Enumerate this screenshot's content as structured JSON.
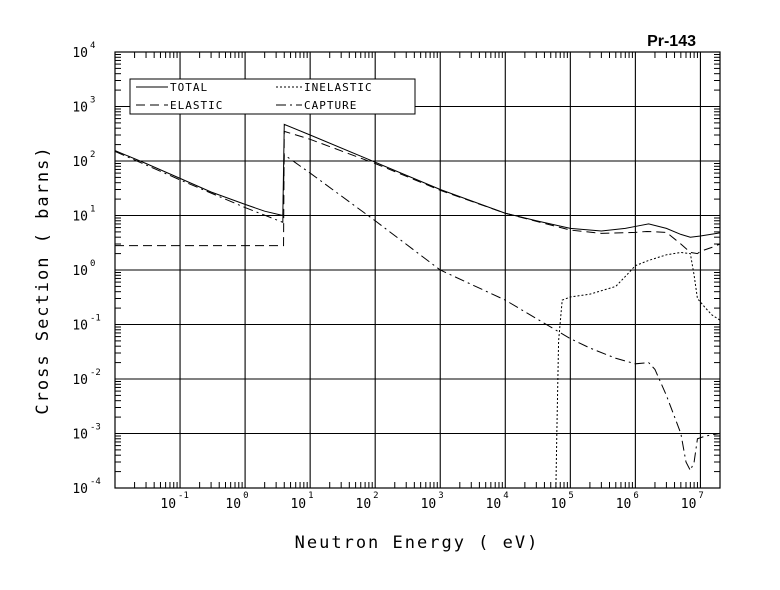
{
  "chart_data": {
    "type": "line",
    "title": "Pr-143",
    "xlabel": "Neutron Energy ( eV)",
    "ylabel": "Cross Section ( barns)",
    "x_scale": "log",
    "y_scale": "log",
    "xlim": [
      0.01,
      20000000
    ],
    "ylim": [
      0.0001,
      10000
    ],
    "grid": true,
    "legend_position": "top-left",
    "x_ticks": [
      {
        "base": "10",
        "exp": "-1",
        "value": 0.1
      },
      {
        "base": "10",
        "exp": "0",
        "value": 1
      },
      {
        "base": "10",
        "exp": "1",
        "value": 10
      },
      {
        "base": "10",
        "exp": "2",
        "value": 100
      },
      {
        "base": "10",
        "exp": "3",
        "value": 1000
      },
      {
        "base": "10",
        "exp": "4",
        "value": 10000
      },
      {
        "base": "10",
        "exp": "5",
        "value": 100000
      },
      {
        "base": "10",
        "exp": "6",
        "value": 1000000
      },
      {
        "base": "10",
        "exp": "7",
        "value": 10000000
      }
    ],
    "y_ticks": [
      {
        "base": "10",
        "exp": "-4",
        "value": 0.0001
      },
      {
        "base": "10",
        "exp": "-3",
        "value": 0.001
      },
      {
        "base": "10",
        "exp": "-2",
        "value": 0.01
      },
      {
        "base": "10",
        "exp": "-1",
        "value": 0.1
      },
      {
        "base": "10",
        "exp": "0",
        "value": 1
      },
      {
        "base": "10",
        "exp": "1",
        "value": 10
      },
      {
        "base": "10",
        "exp": "2",
        "value": 100
      },
      {
        "base": "10",
        "exp": "3",
        "value": 1000
      },
      {
        "base": "10",
        "exp": "4",
        "value": 10000
      }
    ],
    "series": [
      {
        "name": "TOTAL",
        "style": "solid",
        "points": [
          [
            0.01,
            155
          ],
          [
            0.03,
            90
          ],
          [
            0.1,
            48
          ],
          [
            0.3,
            27
          ],
          [
            1,
            16
          ],
          [
            2,
            12
          ],
          [
            3.8,
            10
          ],
          [
            4,
            470
          ],
          [
            10,
            300
          ],
          [
            100,
            95
          ],
          [
            1000,
            30
          ],
          [
            10000,
            11
          ],
          [
            30000,
            8
          ],
          [
            100000,
            5.8
          ],
          [
            300000,
            5.2
          ],
          [
            700000,
            5.8
          ],
          [
            1000000,
            6.3
          ],
          [
            1600000,
            7.0
          ],
          [
            3000000,
            5.8
          ],
          [
            5000000,
            4.5
          ],
          [
            7000000,
            4.0
          ],
          [
            10000000,
            4.2
          ],
          [
            20000000,
            4.8
          ]
        ]
      },
      {
        "name": "ELASTIC",
        "style": "dashed",
        "points": [
          [
            0.01,
            2.8
          ],
          [
            3.8,
            2.8
          ],
          [
            3.9,
            2.8
          ],
          [
            4,
            350
          ],
          [
            10,
            250
          ],
          [
            100,
            90
          ],
          [
            1000,
            29
          ],
          [
            10000,
            11
          ],
          [
            100000,
            5.4
          ],
          [
            300000,
            4.7
          ],
          [
            1000000,
            4.9
          ],
          [
            1500000,
            5.1
          ],
          [
            3000000,
            4.9
          ],
          [
            5000000,
            3.0
          ],
          [
            7000000,
            2.1
          ],
          [
            9000000,
            2.0
          ],
          [
            10000000,
            2.2
          ],
          [
            15000000,
            2.6
          ],
          [
            20000000,
            3.0
          ]
        ]
      },
      {
        "name": "INELASTIC",
        "style": "dotted",
        "points": [
          [
            60000,
            0.0001
          ],
          [
            62000,
            0.001
          ],
          [
            66000,
            0.05
          ],
          [
            75000,
            0.28
          ],
          [
            100000,
            0.32
          ],
          [
            200000,
            0.36
          ],
          [
            500000,
            0.5
          ],
          [
            800000,
            0.9
          ],
          [
            1000000,
            1.2
          ],
          [
            1600000,
            1.5
          ],
          [
            3000000,
            1.9
          ],
          [
            5000000,
            2.1
          ],
          [
            7000000,
            2.0
          ],
          [
            8000000,
            0.8
          ],
          [
            9000000,
            0.3
          ],
          [
            12000000,
            0.2
          ],
          [
            15000000,
            0.15
          ],
          [
            20000000,
            0.12
          ]
        ]
      },
      {
        "name": "CAPTURE",
        "style": "dashdot",
        "points": [
          [
            0.01,
            150
          ],
          [
            0.1,
            45
          ],
          [
            1,
            14
          ],
          [
            3.8,
            7.5
          ],
          [
            4,
            130
          ],
          [
            10,
            60
          ],
          [
            100,
            8
          ],
          [
            1000,
            1.0
          ],
          [
            10000,
            0.28
          ],
          [
            100000,
            0.055
          ],
          [
            200000,
            0.037
          ],
          [
            500000,
            0.024
          ],
          [
            1000000,
            0.019
          ],
          [
            1600000,
            0.02
          ],
          [
            2000000,
            0.015
          ],
          [
            3000000,
            0.005
          ],
          [
            5000000,
            0.001
          ],
          [
            6000000,
            0.0003
          ],
          [
            7000000,
            0.00021
          ],
          [
            8000000,
            0.0003
          ],
          [
            9000000,
            0.0008
          ],
          [
            12000000,
            0.0009
          ],
          [
            20000000,
            0.001
          ]
        ]
      }
    ]
  }
}
